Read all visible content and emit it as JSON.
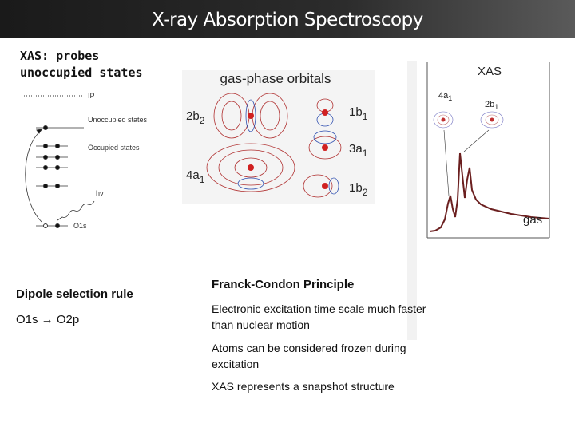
{
  "header": {
    "title": "X-ray Absorption Spectroscopy"
  },
  "intro": {
    "heading": "XAS: probes unoccupied states"
  },
  "energy_diagram": {
    "ip": "IP",
    "unoccupied": "Unoccupied states",
    "occupied": "Occupied states",
    "photon": "hν",
    "core": "O1s"
  },
  "orbitals": {
    "title": "gas-phase orbitals",
    "labels": [
      {
        "main": "2b",
        "sub": "2"
      },
      {
        "main": "4a",
        "sub": "1"
      },
      {
        "main": "1b",
        "sub": "1"
      },
      {
        "main": "3a",
        "sub": "1"
      },
      {
        "main": "1b",
        "sub": "2"
      }
    ]
  },
  "spectrum": {
    "title": "XAS",
    "peaks": [
      {
        "main": "4a",
        "sub": "1"
      },
      {
        "main": "2b",
        "sub": "1"
      }
    ],
    "phase": "gas"
  },
  "dipole": {
    "heading": "Dipole selection rule",
    "text": "O1s → O2p"
  },
  "franck_condon": {
    "heading": "Franck-Condon Principle",
    "points": [
      "Electronic excitation time scale much faster than nuclear motion",
      "Atoms can be considered frozen during excitation",
      "XAS represents a snapshot structure"
    ]
  }
}
